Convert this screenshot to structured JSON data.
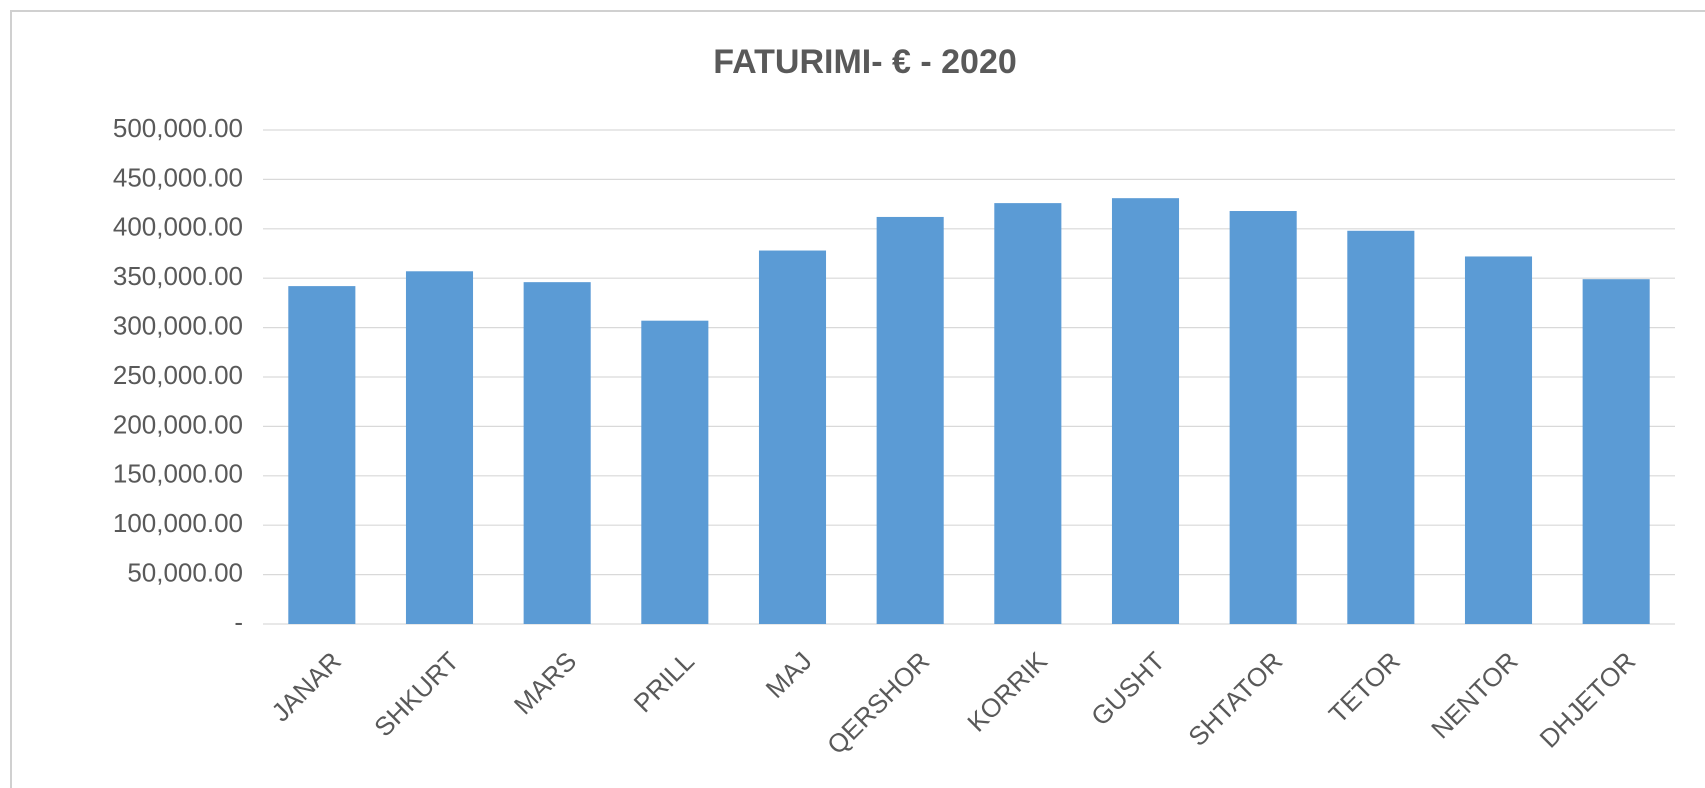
{
  "chart_data": {
    "type": "bar",
    "title": "FATURIMI- € - 2020",
    "categories": [
      "JANAR",
      "SHKURT",
      "MARS",
      "PRILL",
      "MAJ",
      "QERSHOR",
      "KORRIK",
      "GUSHT",
      "SHTATOR",
      "TETOR",
      "NENTOR",
      "DHJETOR"
    ],
    "values": [
      342000,
      357000,
      346000,
      307000,
      378000,
      412000,
      426000,
      431000,
      418000,
      398000,
      372000,
      349000
    ],
    "color": "#5b9bd5",
    "ylim": [
      0,
      500000
    ],
    "yticks": [
      {
        "value": 0,
        "label": "-"
      },
      {
        "value": 50000,
        "label": "50,000.00"
      },
      {
        "value": 100000,
        "label": "100,000.00"
      },
      {
        "value": 150000,
        "label": "150,000.00"
      },
      {
        "value": 200000,
        "label": "200,000.00"
      },
      {
        "value": 250000,
        "label": "250,000.00"
      },
      {
        "value": 300000,
        "label": "300,000.00"
      },
      {
        "value": 350000,
        "label": "350,000.00"
      },
      {
        "value": 400000,
        "label": "400,000.00"
      },
      {
        "value": 450000,
        "label": "450,000.00"
      },
      {
        "value": 500000,
        "label": "500,000.00"
      }
    ],
    "grid": true
  }
}
